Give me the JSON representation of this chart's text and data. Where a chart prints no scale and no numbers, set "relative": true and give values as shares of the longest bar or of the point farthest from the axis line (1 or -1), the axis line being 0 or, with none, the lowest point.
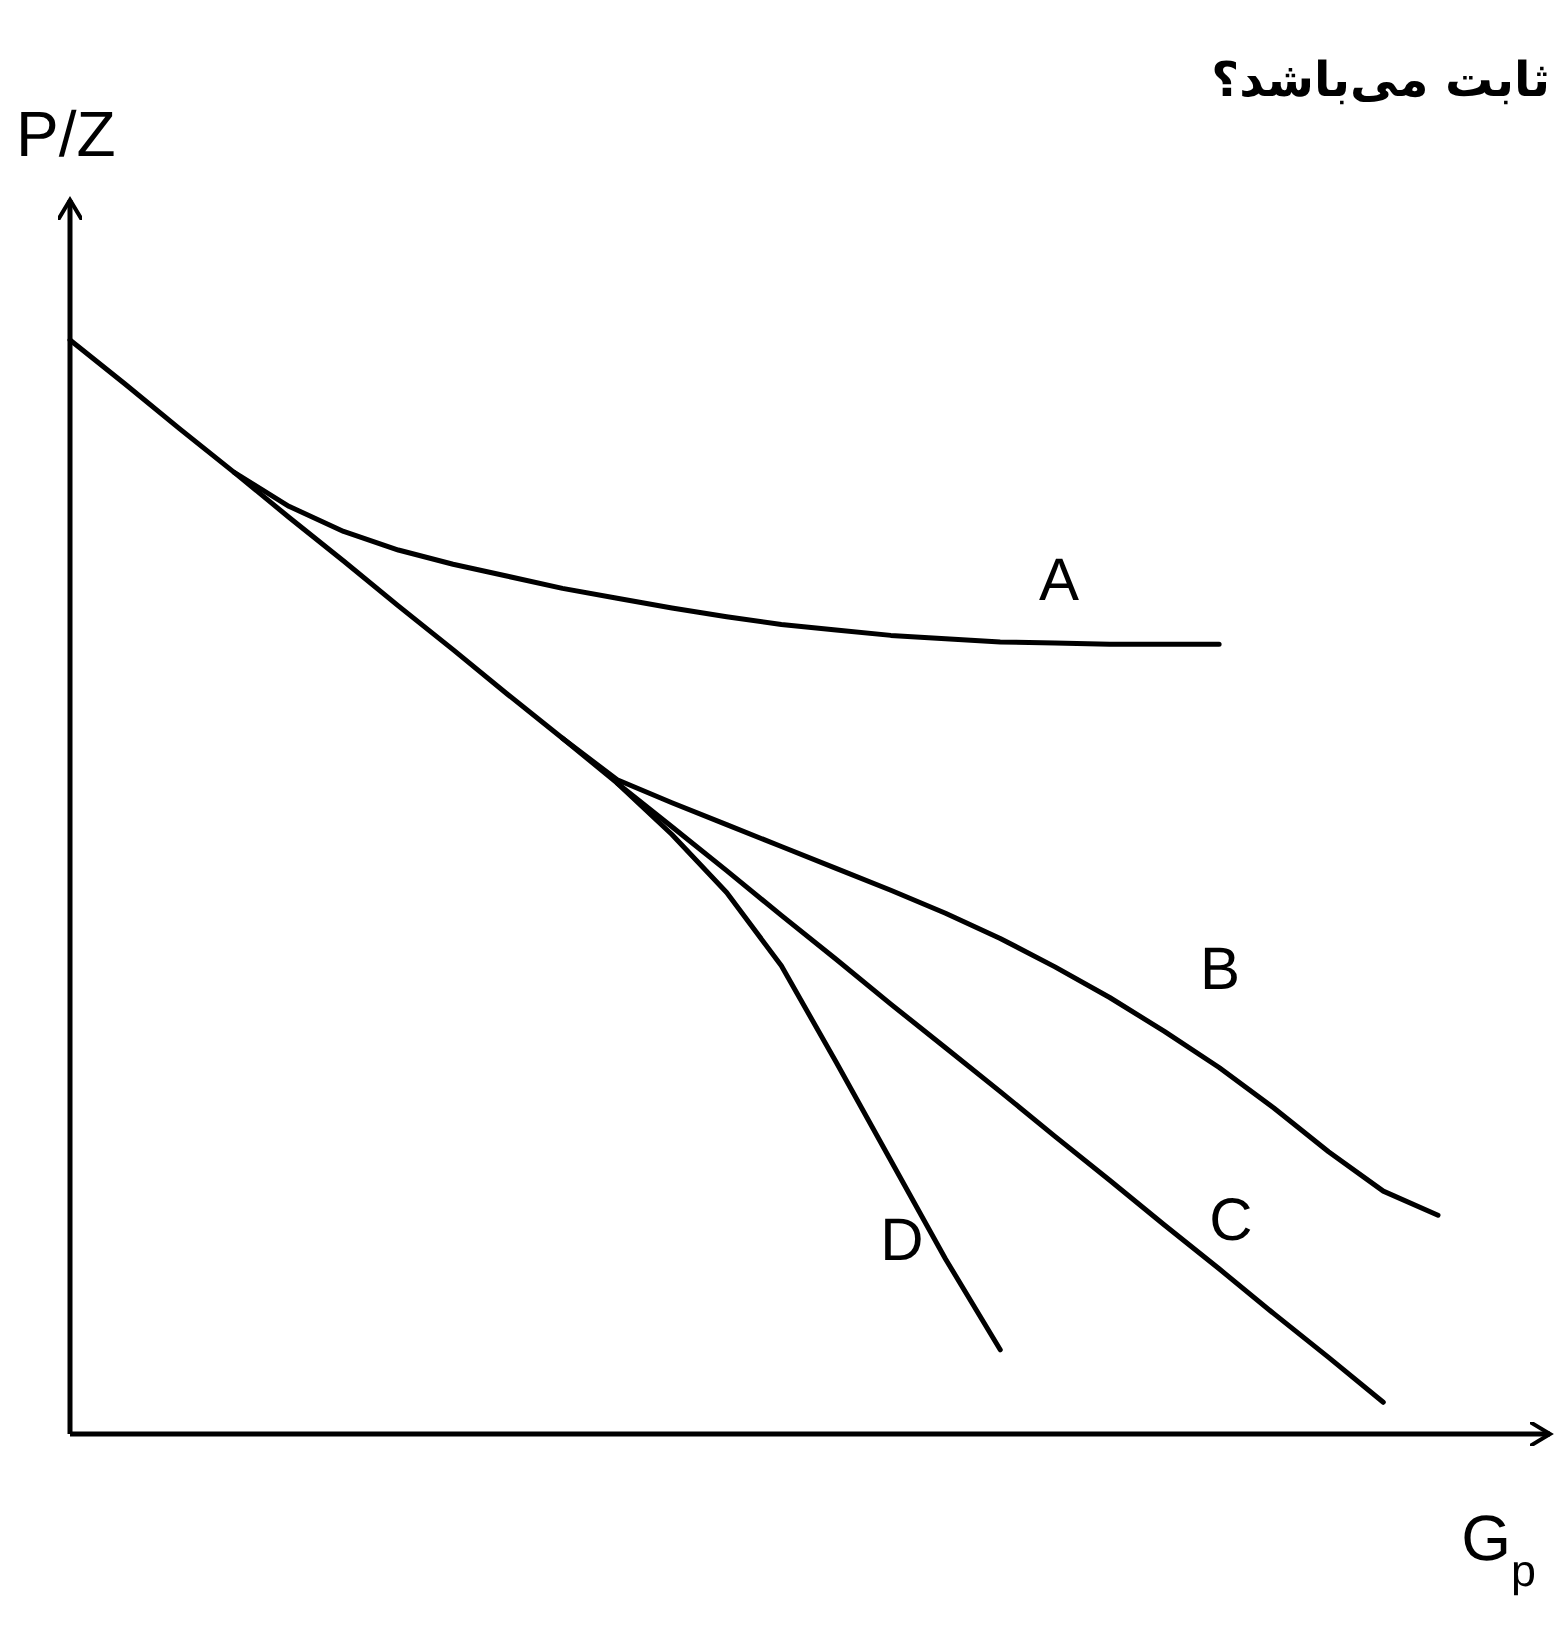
{
  "chart_data": {
    "type": "line",
    "relative": true,
    "ylabel": "P/Z",
    "xlabel": "G$_{p}$",
    "annotations": [
      "ثابت می‌باشد؟"
    ],
    "categories": [
      null,
      null,
      null,
      null,
      null,
      null,
      null,
      null,
      null,
      null,
      null,
      null,
      null,
      null,
      null,
      null,
      null,
      null,
      null,
      null,
      null,
      null,
      null,
      null,
      null,
      null
    ],
    "series": [
      {
        "name": "A",
        "color": "#000000",
        "values": [
          null,
          null,
          null,
          0.879,
          0.848,
          0.825,
          0.808,
          0.795,
          0.784,
          0.773,
          0.764,
          0.755,
          0.747,
          0.74,
          0.735,
          0.73,
          0.727,
          0.724,
          0.723,
          0.722,
          0.722,
          0.722,
          null,
          null,
          null,
          null
        ]
      },
      {
        "name": "B",
        "color": "#000000",
        "values": [
          null,
          null,
          null,
          null,
          null,
          null,
          null,
          null,
          null,
          0.636,
          0.598,
          0.577,
          0.557,
          0.537,
          0.517,
          0.497,
          0.476,
          0.453,
          0.427,
          0.399,
          0.368,
          0.335,
          0.298,
          0.258,
          0.222,
          0.2
        ]
      },
      {
        "name": "C",
        "color": "#000000",
        "values": [
          1,
          0.96,
          0.919,
          0.879,
          0.838,
          0.798,
          0.757,
          0.717,
          0.676,
          0.636,
          0.595,
          0.555,
          0.515,
          0.474,
          0.434,
          0.393,
          0.353,
          0.313,
          0.272,
          0.232,
          0.191,
          0.151,
          0.11,
          0.07,
          0.029,
          null
        ]
      },
      {
        "name": "D",
        "color": "#000000",
        "values": [
          null,
          null,
          null,
          null,
          null,
          null,
          null,
          null,
          null,
          null,
          0.595,
          0.548,
          0.495,
          0.428,
          0.34,
          0.25,
          0.16,
          0.077,
          null,
          null,
          null,
          null,
          null,
          null,
          null,
          null
        ]
      }
    ]
  }
}
